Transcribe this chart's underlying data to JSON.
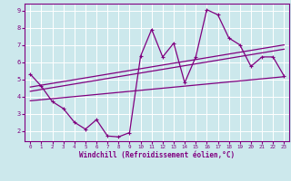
{
  "xlabel": "Windchill (Refroidissement éolien,°C)",
  "bg_color": "#cce8ec",
  "grid_color": "#ffffff",
  "line_color": "#800080",
  "xlim": [
    -0.5,
    23.5
  ],
  "ylim": [
    1.4,
    9.4
  ],
  "xticks": [
    0,
    1,
    2,
    3,
    4,
    5,
    6,
    7,
    8,
    9,
    10,
    11,
    12,
    13,
    14,
    15,
    16,
    17,
    18,
    19,
    20,
    21,
    22,
    23
  ],
  "yticks": [
    2,
    3,
    4,
    5,
    6,
    7,
    8,
    9
  ],
  "curve_x": [
    0,
    1,
    2,
    3,
    4,
    5,
    6,
    7,
    8,
    9,
    10,
    11,
    12,
    13,
    14,
    15,
    16,
    17,
    18,
    19,
    20,
    21,
    22,
    23
  ],
  "curve_y": [
    5.3,
    4.6,
    3.7,
    3.3,
    2.5,
    2.1,
    2.65,
    1.7,
    1.65,
    1.9,
    6.35,
    7.9,
    6.3,
    7.1,
    4.8,
    6.3,
    9.05,
    8.75,
    7.4,
    7.0,
    5.75,
    6.3,
    6.3,
    5.2
  ],
  "line1_x": [
    0,
    23
  ],
  "line1_y": [
    4.55,
    7.0
  ],
  "line2_x": [
    0,
    23
  ],
  "line2_y": [
    4.3,
    6.75
  ],
  "line3_x": [
    0,
    23
  ],
  "line3_y": [
    3.75,
    5.15
  ]
}
